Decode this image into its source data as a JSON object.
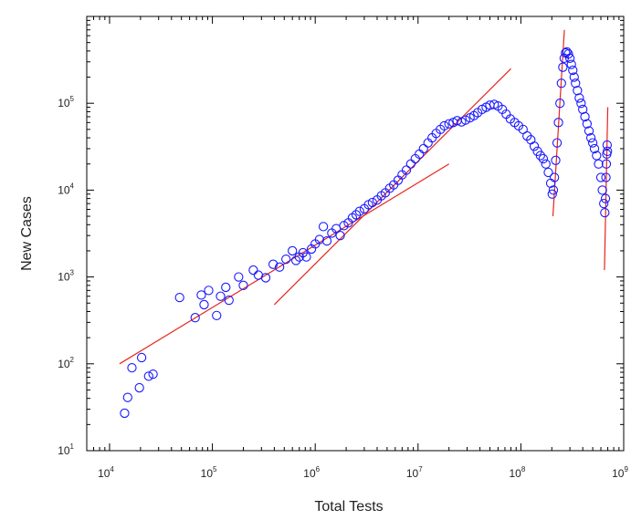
{
  "chart_data": {
    "type": "scatter",
    "title": "",
    "xlabel": "Total Tests",
    "ylabel": "New Cases",
    "xscale": "log",
    "yscale": "log",
    "xlim": [
      6000,
      1000000000
    ],
    "ylim": [
      10,
      1000000
    ],
    "x_ticks": [
      {
        "base": "10",
        "exp": "4",
        "value": 10000
      },
      {
        "base": "10",
        "exp": "5",
        "value": 100000
      },
      {
        "base": "10",
        "exp": "6",
        "value": 1000000
      },
      {
        "base": "10",
        "exp": "7",
        "value": 10000000
      },
      {
        "base": "10",
        "exp": "8",
        "value": 100000000
      },
      {
        "base": "10",
        "exp": "9",
        "value": 1000000000
      }
    ],
    "y_ticks": [
      {
        "base": "10",
        "exp": "1",
        "value": 10
      },
      {
        "base": "10",
        "exp": "2",
        "value": 100
      },
      {
        "base": "10",
        "exp": "3",
        "value": 1000
      },
      {
        "base": "10",
        "exp": "4",
        "value": 10000
      },
      {
        "base": "10",
        "exp": "5",
        "value": 100000
      }
    ],
    "grid": false,
    "marker_color": "#1a1aff",
    "fit_color": "#e8241c",
    "points": [
      [
        14000,
        27
      ],
      [
        15000,
        41
      ],
      [
        16500,
        90
      ],
      [
        19500,
        53
      ],
      [
        20500,
        118
      ],
      [
        24000,
        72
      ],
      [
        26500,
        76
      ],
      [
        48000,
        580
      ],
      [
        68000,
        340
      ],
      [
        78000,
        620
      ],
      [
        83000,
        480
      ],
      [
        92000,
        700
      ],
      [
        110000,
        360
      ],
      [
        120000,
        600
      ],
      [
        135000,
        760
      ],
      [
        145000,
        540
      ],
      [
        180000,
        1000
      ],
      [
        200000,
        800
      ],
      [
        250000,
        1200
      ],
      [
        280000,
        1050
      ],
      [
        330000,
        980
      ],
      [
        390000,
        1400
      ],
      [
        450000,
        1300
      ],
      [
        520000,
        1600
      ],
      [
        600000,
        2000
      ],
      [
        650000,
        1550
      ],
      [
        700000,
        1700
      ],
      [
        760000,
        1900
      ],
      [
        820000,
        1700
      ],
      [
        920000,
        2100
      ],
      [
        1000000,
        2400
      ],
      [
        1100000,
        2700
      ],
      [
        1200000,
        3800
      ],
      [
        1300000,
        2600
      ],
      [
        1450000,
        3200
      ],
      [
        1600000,
        3600
      ],
      [
        1750000,
        3000
      ],
      [
        1900000,
        3900
      ],
      [
        2100000,
        4200
      ],
      [
        2300000,
        4800
      ],
      [
        2500000,
        5200
      ],
      [
        2700000,
        5700
      ],
      [
        3000000,
        6100
      ],
      [
        3300000,
        6800
      ],
      [
        3600000,
        7200
      ],
      [
        4000000,
        7700
      ],
      [
        4400000,
        8600
      ],
      [
        4800000,
        9300
      ],
      [
        5300000,
        10500
      ],
      [
        5800000,
        11500
      ],
      [
        6400000,
        13000
      ],
      [
        7000000,
        15000
      ],
      [
        7700000,
        17000
      ],
      [
        8500000,
        20000
      ],
      [
        9400000,
        23000
      ],
      [
        10300000,
        26000
      ],
      [
        11300000,
        30000
      ],
      [
        12500000,
        35000
      ],
      [
        13700000,
        40000
      ],
      [
        15000000,
        45000
      ],
      [
        16500000,
        50000
      ],
      [
        18000000,
        55000
      ],
      [
        20000000,
        58000
      ],
      [
        22000000,
        60000
      ],
      [
        24000000,
        63000
      ],
      [
        26500000,
        61000
      ],
      [
        29000000,
        64000
      ],
      [
        32000000,
        68000
      ],
      [
        35000000,
        72000
      ],
      [
        38000000,
        78000
      ],
      [
        42000000,
        85000
      ],
      [
        46000000,
        90000
      ],
      [
        50000000,
        95000
      ],
      [
        55000000,
        97000
      ],
      [
        60000000,
        93000
      ],
      [
        66000000,
        85000
      ],
      [
        72000000,
        75000
      ],
      [
        79000000,
        66000
      ],
      [
        87000000,
        60000
      ],
      [
        95000000,
        55000
      ],
      [
        105000000,
        50000
      ],
      [
        115000000,
        42000
      ],
      [
        125000000,
        38000
      ],
      [
        135000000,
        32000
      ],
      [
        145000000,
        28000
      ],
      [
        155000000,
        25000
      ],
      [
        165000000,
        23000
      ],
      [
        175000000,
        20000
      ],
      [
        185000000,
        16000
      ],
      [
        195000000,
        12000
      ],
      [
        202000000,
        9000
      ],
      [
        207000000,
        10000
      ],
      [
        212000000,
        14000
      ],
      [
        218000000,
        22000
      ],
      [
        225000000,
        35000
      ],
      [
        232000000,
        60000
      ],
      [
        240000000,
        100000
      ],
      [
        248000000,
        170000
      ],
      [
        256000000,
        260000
      ],
      [
        264000000,
        330000
      ],
      [
        272000000,
        380000
      ],
      [
        280000000,
        390000
      ],
      [
        290000000,
        370000
      ],
      [
        300000000,
        330000
      ],
      [
        310000000,
        280000
      ],
      [
        320000000,
        240000
      ],
      [
        330000000,
        200000
      ],
      [
        340000000,
        170000
      ],
      [
        355000000,
        140000
      ],
      [
        370000000,
        115000
      ],
      [
        385000000,
        100000
      ],
      [
        400000000,
        85000
      ],
      [
        420000000,
        70000
      ],
      [
        440000000,
        58000
      ],
      [
        460000000,
        48000
      ],
      [
        480000000,
        40000
      ],
      [
        500000000,
        35000
      ],
      [
        520000000,
        30000
      ],
      [
        545000000,
        25000
      ],
      [
        570000000,
        20000
      ],
      [
        600000000,
        14000
      ],
      [
        620000000,
        10000
      ],
      [
        640000000,
        7000
      ],
      [
        655000000,
        5500
      ],
      [
        665000000,
        8000
      ],
      [
        672000000,
        14000
      ],
      [
        678000000,
        20000
      ],
      [
        684000000,
        26000
      ],
      [
        690000000,
        33000
      ],
      [
        695000000,
        28000
      ]
    ],
    "fit_lines": [
      {
        "x": [
          12500,
          20000000
        ],
        "y": [
          100,
          20000
        ]
      },
      {
        "x": [
          400000,
          80000000
        ],
        "y": [
          480,
          250000
        ]
      },
      {
        "x": [
          205000000,
          265000000
        ],
        "y": [
          5000,
          700000
        ]
      },
      {
        "x": [
          650000000,
          700000000
        ],
        "y": [
          1200,
          90000
        ]
      }
    ]
  }
}
